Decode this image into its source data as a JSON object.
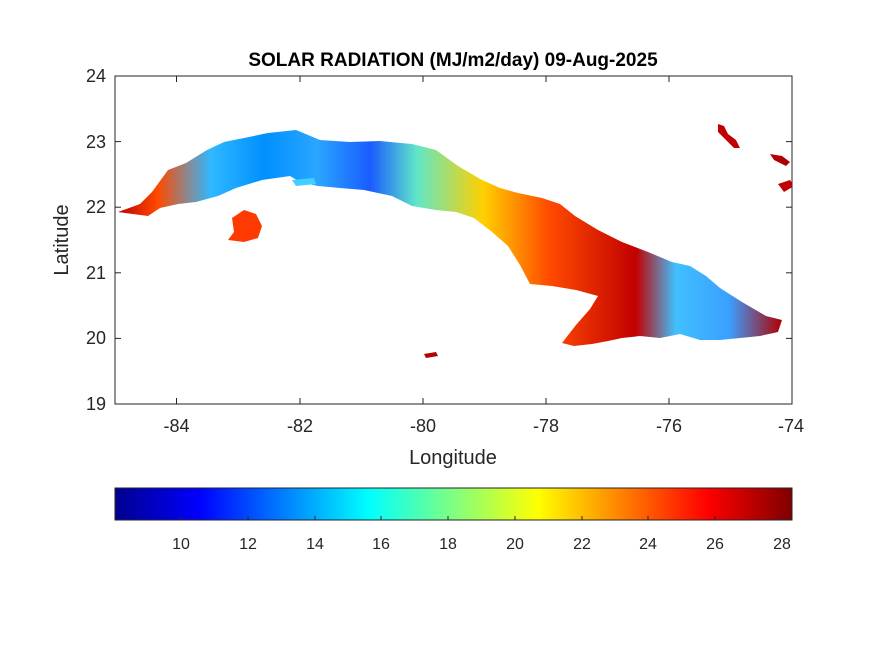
{
  "figure": {
    "title": "SOLAR RADIATION (MJ/m2/day) 09-Aug-2025",
    "xlabel": "Longitude",
    "ylabel": "Latitude"
  },
  "map": {
    "xlim": [
      -85,
      -74
    ],
    "ylim": [
      19,
      24
    ],
    "x_ticks": [
      "-84",
      "-82",
      "-80",
      "-78",
      "-76",
      "-74"
    ],
    "y_ticks": [
      "19",
      "20",
      "21",
      "22",
      "23",
      "24"
    ],
    "variable": "solar radiation",
    "units": "MJ/m2/day",
    "date": "09-Aug-2025"
  },
  "colorbar": {
    "colormap": "jet",
    "range": [
      8,
      28.2
    ],
    "ticks": [
      "10",
      "12",
      "14",
      "16",
      "18",
      "20",
      "22",
      "24",
      "26",
      "28"
    ],
    "orientation": "horizontal"
  },
  "colors": {
    "jet_low": "#00008f",
    "jet_blue": "#0000ff",
    "jet_cyan": "#00ffff",
    "jet_yellow": "#ffff00",
    "jet_red": "#ff0000",
    "jet_high": "#800000"
  }
}
